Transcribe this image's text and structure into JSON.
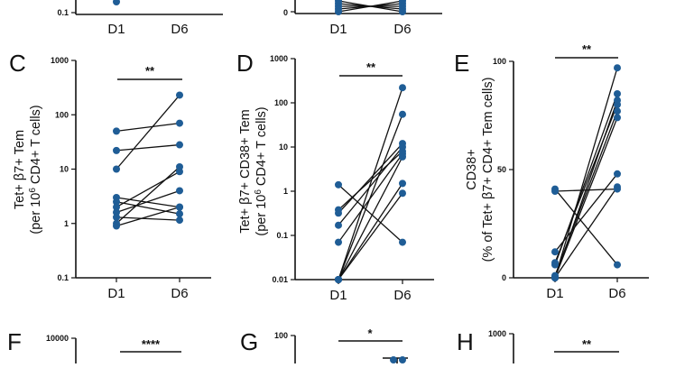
{
  "colors": {
    "point": "#1f5d96",
    "line": "#111111",
    "axis": "#111111"
  },
  "chart_data": [
    {
      "panel": "top-left (partial)",
      "type": "scatter",
      "categories": [
        "D1",
        "D6"
      ],
      "scale": "log",
      "visible_tick_labels": [
        "0.1"
      ],
      "points_visible": [
        {
          "x": "D1",
          "y": 0.12
        }
      ]
    },
    {
      "panel": "top-middle (partial)",
      "type": "scatter",
      "categories": [
        "D1",
        "D6"
      ],
      "scale": "linear",
      "visible_tick_labels": [
        "0"
      ],
      "series_visible": {
        "D1": [
          0,
          0,
          0,
          0,
          0
        ],
        "D6": [
          0,
          0,
          0,
          0,
          0
        ]
      }
    },
    {
      "panel": "C",
      "type": "scatter",
      "categories": [
        "D1",
        "D6"
      ],
      "scale": "log",
      "ylim": [
        0.1,
        1000
      ],
      "yticks": [
        "0.1",
        "1",
        "10",
        "100",
        "1000"
      ],
      "ylabel_lines": [
        "Tet+ β7+ Tem",
        "(per 10",
        "6",
        " CD4+ T cells)"
      ],
      "significance": "**",
      "pairs": [
        [
          50,
          70
        ],
        [
          22,
          28
        ],
        [
          10,
          230
        ],
        [
          3.0,
          2.0
        ],
        [
          2.5,
          1.5
        ],
        [
          2.0,
          9
        ],
        [
          1.6,
          4.0
        ],
        [
          1.3,
          1.15
        ],
        [
          1.0,
          11
        ],
        [
          0.9,
          2.0
        ]
      ]
    },
    {
      "panel": "D",
      "type": "scatter",
      "categories": [
        "D1",
        "D6"
      ],
      "scale": "log",
      "ylim": [
        0.01,
        1000
      ],
      "yticks": [
        "0.01",
        "0.1",
        "1",
        "10",
        "100",
        "1000"
      ],
      "ylabel_lines": [
        "Tet+ β7+ CD38+ Tem",
        "(per 10",
        "6",
        " CD4+ T cells)"
      ],
      "significance": "**",
      "pairs": [
        [
          1.4,
          0.07
        ],
        [
          0.38,
          8
        ],
        [
          0.32,
          12
        ],
        [
          0.17,
          10
        ],
        [
          0.07,
          7
        ],
        [
          0.01,
          220
        ],
        [
          0.01,
          55
        ],
        [
          0.01,
          1.5
        ],
        [
          0.01,
          0.9
        ],
        [
          0.01,
          6
        ]
      ]
    },
    {
      "panel": "E",
      "type": "scatter",
      "categories": [
        "D1",
        "D6"
      ],
      "scale": "linear",
      "ylim": [
        0,
        100
      ],
      "yticks": [
        "0",
        "50",
        "100"
      ],
      "ylabel_lines": [
        "CD38+",
        "(% of Tet+ β7+ CD4+ Tem cells)"
      ],
      "significance": "**",
      "pairs": [
        [
          41,
          6
        ],
        [
          40,
          41
        ],
        [
          12,
          48
        ],
        [
          7,
          80
        ],
        [
          6,
          85
        ],
        [
          1,
          77
        ],
        [
          0,
          97
        ],
        [
          0,
          74
        ],
        [
          0,
          42
        ],
        [
          0,
          82
        ]
      ]
    },
    {
      "panel": "F",
      "type": "scatter",
      "scale": "log",
      "yticks_visible": [
        "10000"
      ],
      "significance": "****"
    },
    {
      "panel": "G",
      "type": "scatter",
      "yticks_visible": [
        "100"
      ],
      "significance": "*"
    },
    {
      "panel": "H",
      "type": "scatter",
      "scale": "log",
      "yticks_visible": [
        "1000"
      ],
      "significance": "**"
    }
  ]
}
